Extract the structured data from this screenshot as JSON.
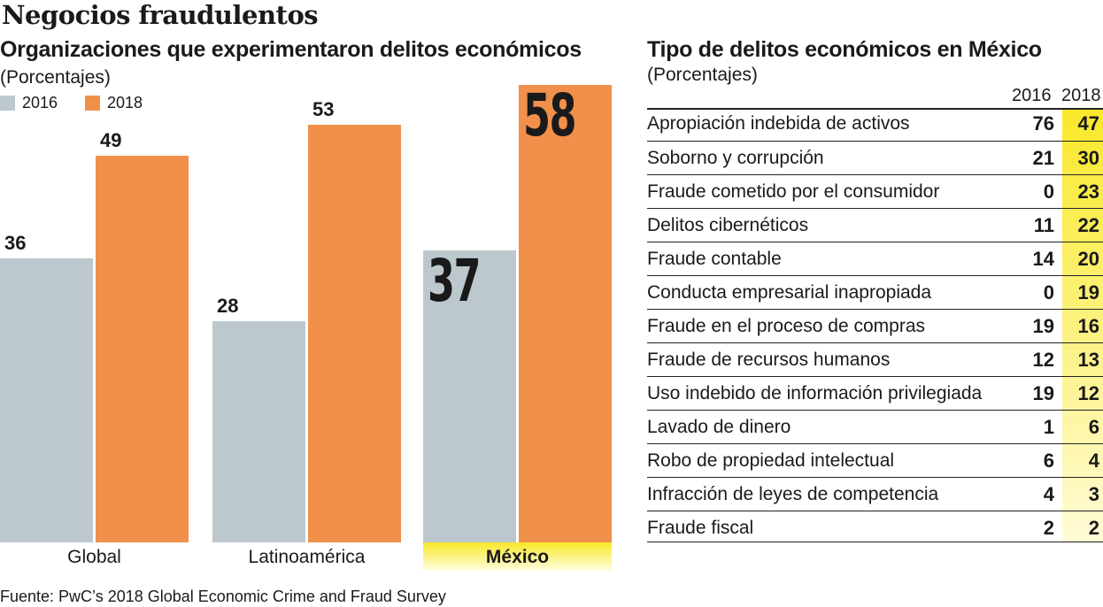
{
  "title": "Negocios fraudulentos",
  "chart_data": [
    {
      "type": "bar",
      "title": "Organizaciones que experimentaron delitos económicos",
      "subtitle": "(Porcentajes)",
      "categories": [
        "Global",
        "Latinoamérica",
        "México"
      ],
      "series": [
        {
          "name": "2016",
          "color": "#bcc8ce",
          "values": [
            36,
            28,
            37
          ]
        },
        {
          "name": "2018",
          "color": "#f0904b",
          "values": [
            49,
            53,
            58
          ]
        }
      ],
      "highlight_category": "México",
      "ylim": [
        0,
        58
      ],
      "grid": false,
      "legend": "top-left"
    },
    {
      "type": "table",
      "title": "Tipo de delitos económicos en México",
      "subtitle": "(Porcentajes)",
      "columns": [
        "2016",
        "2018"
      ],
      "rows": [
        {
          "label": "Apropiación indebida de activos",
          "v2016": "76",
          "v2018": "47"
        },
        {
          "label": "Soborno y corrupción",
          "v2016": "21",
          "v2018": "30"
        },
        {
          "label": "Fraude cometido por el consumidor",
          "v2016": "0",
          "v2018": "23"
        },
        {
          "label": "Delitos cibernéticos",
          "v2016": "11",
          "v2018": "22"
        },
        {
          "label": "Fraude contable",
          "v2016": "14",
          "v2018": "20"
        },
        {
          "label": "Conducta empresarial inapropiada",
          "v2016": "0",
          "v2018": "19"
        },
        {
          "label": "Fraude en el proceso de compras",
          "v2016": "19",
          "v2018": "16"
        },
        {
          "label": "Fraude de recursos humanos",
          "v2016": "12",
          "v2018": "13"
        },
        {
          "label": "Uso indebido de información privilegiada",
          "v2016": "19",
          "v2018": "12"
        },
        {
          "label": "Lavado de dinero",
          "v2016": "1",
          "v2018": "6"
        },
        {
          "label": "Robo de propiedad intelectual",
          "v2016": "6",
          "v2018": "4"
        },
        {
          "label": "Infracción de leyes de competencia",
          "v2016": "4",
          "v2018": "3"
        },
        {
          "label": "Fraude fiscal",
          "v2016": "2",
          "v2018": "2"
        }
      ]
    }
  ],
  "source": "Fuente: PwC’s 2018 Global Economic Crime and Fraud Survey"
}
